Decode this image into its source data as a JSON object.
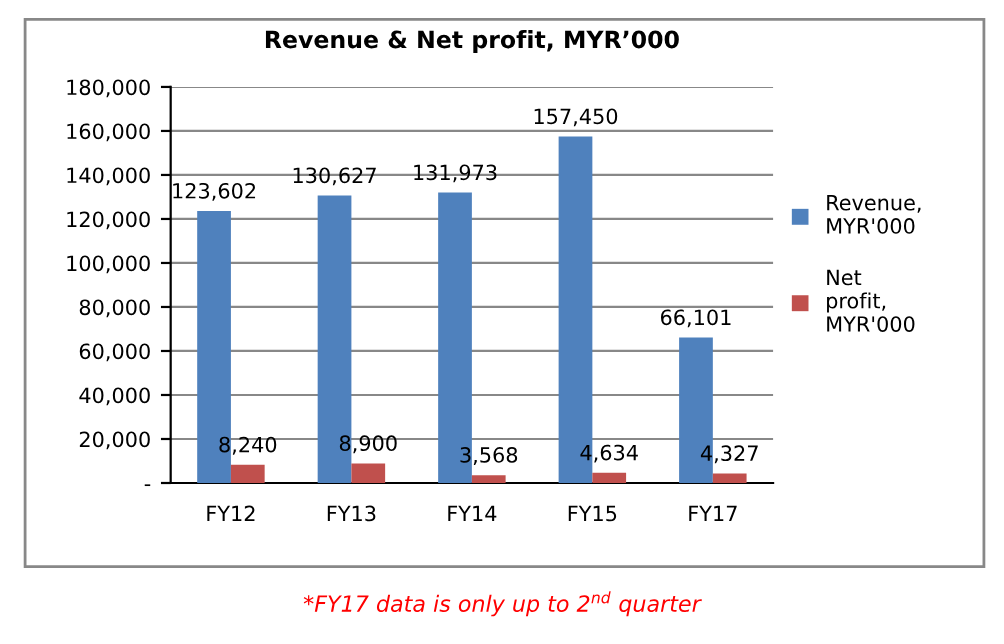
{
  "chart_data": {
    "type": "bar",
    "title": "Revenue & Net profit, MYR’000",
    "categories": [
      "FY12",
      "FY13",
      "FY14",
      "FY15",
      "FY17"
    ],
    "series": [
      {
        "name": "Revenue,\nMYR'000",
        "color": "#4f81bd",
        "values": [
          123602,
          130627,
          131973,
          157450,
          66101
        ],
        "value_labels": [
          "123,602",
          "130,627",
          "131,973",
          "157,450",
          "66,101"
        ]
      },
      {
        "name": "Net\nprofit,\nMYR'000",
        "color": "#c0504d",
        "values": [
          8240,
          8900,
          3568,
          4634,
          4327
        ],
        "value_labels": [
          "8,240",
          "8,900",
          "3,568",
          "4,634",
          "4,327"
        ]
      }
    ],
    "ylim": [
      0,
      180000
    ],
    "yticks": [
      {
        "value": 0,
        "label": "-"
      },
      {
        "value": 20000,
        "label": "20,000"
      },
      {
        "value": 40000,
        "label": "40,000"
      },
      {
        "value": 60000,
        "label": "60,000"
      },
      {
        "value": 80000,
        "label": "80,000"
      },
      {
        "value": 100000,
        "label": "100,000"
      },
      {
        "value": 120000,
        "label": "120,000"
      },
      {
        "value": 140000,
        "label": "140,000"
      },
      {
        "value": 160000,
        "label": "160,000"
      },
      {
        "value": 180000,
        "label": "180,000"
      }
    ],
    "grid": "y",
    "legend": "right",
    "annotations": [
      "*FY17 data is only up to 2$^{nd}$ quarter"
    ]
  }
}
